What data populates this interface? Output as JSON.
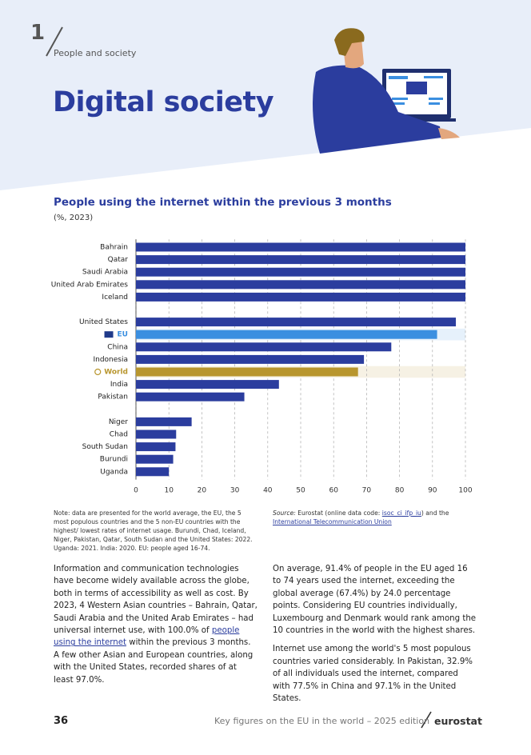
{
  "header": {
    "section_number": "1",
    "section": "People and society",
    "title": "Digital society"
  },
  "chart_data": {
    "type": "bar",
    "orientation": "horizontal",
    "title": "People using the internet within the previous 3 months",
    "subtitle": "(%, 2023)",
    "categories": [
      "Bahrain",
      "Qatar",
      "Saudi Arabia",
      "United Arab Emirates",
      "Iceland",
      null,
      "United States",
      "EU",
      "China",
      "Indonesia",
      "World",
      "India",
      "Pakistan",
      null,
      "Niger",
      "Chad",
      "South Sudan",
      "Burundi",
      "Uganda"
    ],
    "values": [
      100,
      100,
      100,
      100,
      100,
      null,
      97.1,
      91.4,
      77.5,
      69.2,
      67.4,
      43.4,
      32.9,
      null,
      16.9,
      12.2,
      12.0,
      11.3,
      10.0
    ],
    "color": "#2b3d9e",
    "colors": [
      "#2b3d9e",
      "#2b3d9e",
      "#2b3d9e",
      "#2b3d9e",
      "#2b3d9e",
      null,
      "#2b3d9e",
      "#3b8fe0",
      "#2b3d9e",
      "#2b3d9e",
      "#b8962e",
      "#2b3d9e",
      "#2b3d9e",
      null,
      "#2b3d9e",
      "#2b3d9e",
      "#2b3d9e",
      "#2b3d9e",
      "#2b3d9e"
    ],
    "xlim": [
      0,
      100
    ],
    "xticks": [
      0,
      10,
      20,
      30,
      40,
      50,
      60,
      70,
      80,
      90,
      100
    ],
    "grid": true
  },
  "note": "Note: data are presented for the world average, the EU, the 5 most populous countries and the 5 non-EU countries with the highest/ lowest rates of internet usage. Burundi, Chad, Iceland, Niger, Pakistan, Qatar, South Sudan and the United States: 2022. Uganda: 2021. India: 2020. EU: people aged 16-74.",
  "source": {
    "label": "Source:",
    "text": "Eurostat (online data code:",
    "code": "isoc_ci_ifp_iu",
    "text2": ") and the",
    "link": "International Telecommunication Union"
  },
  "body": {
    "left": {
      "before": "Information and communication technologies have become widely available across the globe, both in terms of accessibility as well as cost. By 2023, 4 Western Asian countries – Bahrain, Qatar, Saudi Arabia and the United Arab Emirates – had universal internet use, with 100.0% of",
      "link": "people using the internet",
      "after": "within the previous 3 months. A few other Asian and European countries, along with the United States, recorded shares of at least 97.0%."
    },
    "right": [
      "On average, 91.4% of people in the EU aged 16 to 74 years used the internet, exceeding the global average (67.4%) by 24.0 percentage points. Considering EU countries individually, Luxembourg and Denmark would rank among the 10 countries in the world with the highest shares.",
      "Internet use among the world's 5 most populous countries varied considerably. In Pakistan, 32.9% of all individuals used the internet, compared with 77.5% in China and 97.1% in the United States."
    ]
  },
  "footer": {
    "page": "36",
    "publication": "Key figures on the EU in the world – 2025 edition",
    "brand": "eurostat"
  }
}
